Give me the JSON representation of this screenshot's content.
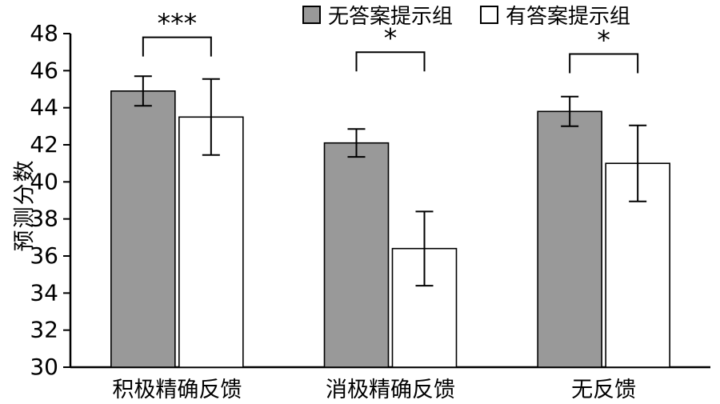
{
  "chart_data": {
    "type": "bar",
    "title": "",
    "xlabel": "",
    "ylabel": "预测分数",
    "ylim": [
      30,
      48
    ],
    "ytick_step": 2,
    "grid": false,
    "legend_position": "top",
    "bar_border_color": "#000000",
    "categories": [
      "积极精确反馈",
      "消极精确反馈",
      "无反馈"
    ],
    "series": [
      {
        "name": "无答案提示组",
        "fill": "#999999",
        "values": [
          44.9,
          42.1,
          43.8
        ],
        "errors": [
          0.8,
          0.75,
          0.8
        ]
      },
      {
        "name": "有答案提示组",
        "fill": "#ffffff",
        "values": [
          43.5,
          36.4,
          41.0
        ],
        "errors": [
          2.05,
          2.0,
          2.05
        ]
      }
    ],
    "significance": [
      {
        "category_index": 0,
        "label": "***",
        "y": 47.8
      },
      {
        "category_index": 1,
        "label": "*",
        "y": 47.0
      },
      {
        "category_index": 2,
        "label": "*",
        "y": 46.9
      }
    ]
  }
}
